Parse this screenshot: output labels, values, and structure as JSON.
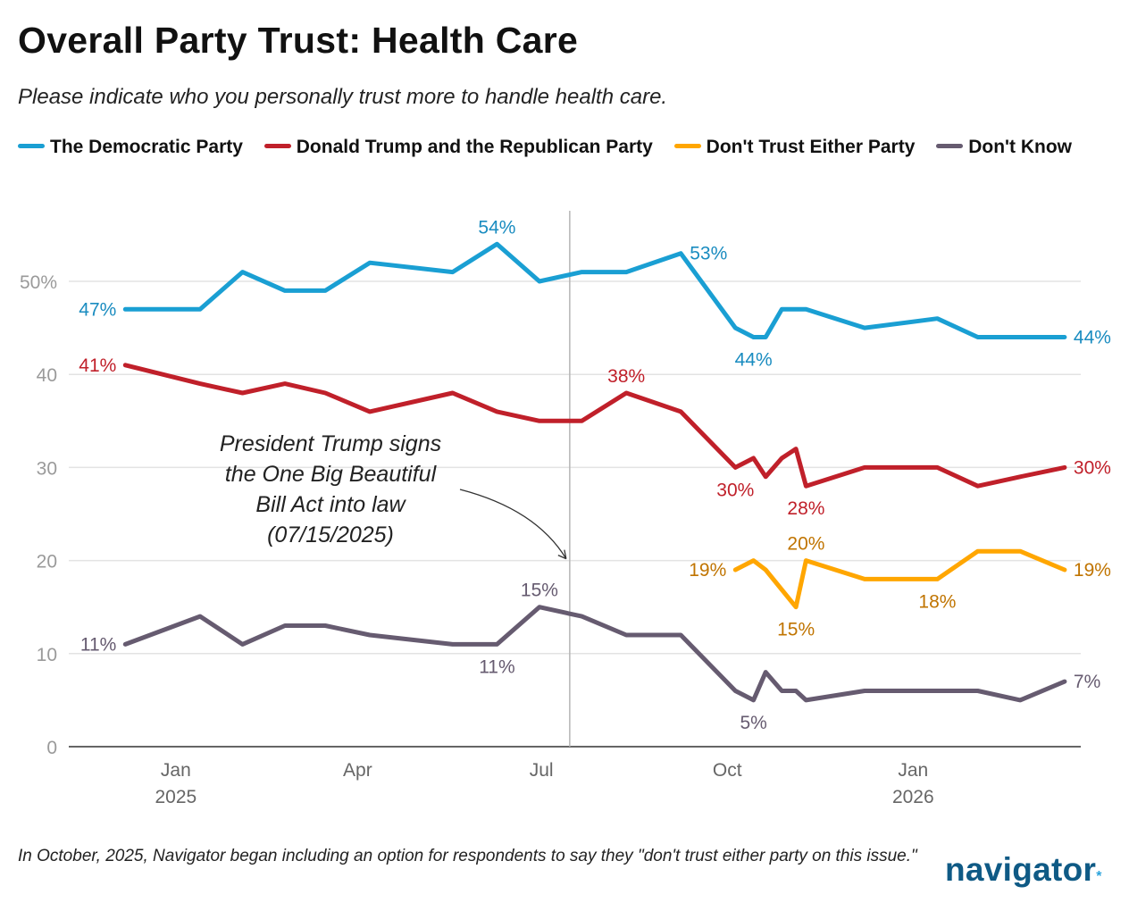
{
  "title": "Overall Party Trust: Health Care",
  "subtitle": "Please indicate who you personally trust more to handle health care.",
  "footnote": "In October, 2025, Navigator began including an option for respondents to say they \"don't trust either party on this issue.\"",
  "logo": "navigator",
  "chart_data": {
    "type": "line",
    "title": "Overall Party Trust: Health Care",
    "xlabel": "",
    "ylabel": "",
    "xlim": [
      "2024-11-09",
      "2026-03-25"
    ],
    "ylim": [
      0,
      56
    ],
    "grid": true,
    "legend_placement": "top",
    "y_ticks": [
      {
        "value": 0,
        "label": "0"
      },
      {
        "value": 10,
        "label": "10"
      },
      {
        "value": 20,
        "label": "20"
      },
      {
        "value": 30,
        "label": "30"
      },
      {
        "value": 40,
        "label": "40"
      },
      {
        "value": 50,
        "label": "50%"
      }
    ],
    "x_ticks": [
      {
        "date": "2025-01-01",
        "label": "Jan",
        "sublabel": "2025"
      },
      {
        "date": "2025-04-01",
        "label": "Apr",
        "sublabel": ""
      },
      {
        "date": "2025-07-01",
        "label": "Jul",
        "sublabel": ""
      },
      {
        "date": "2025-10-01",
        "label": "Oct",
        "sublabel": ""
      },
      {
        "date": "2026-01-01",
        "label": "Jan",
        "sublabel": "2026"
      }
    ],
    "annotation": {
      "date": "2025-07-15",
      "value": 20,
      "lines": [
        "President Trump signs",
        "the One Big Beautiful",
        "Bill Act into law",
        "(07/15/2025)"
      ]
    },
    "series": [
      {
        "name": "The Democratic Party",
        "color": "#1a9fd3",
        "label_color": "#1a8cc0",
        "points": [
          [
            "2024-12-07",
            47
          ],
          [
            "2025-01-13",
            47
          ],
          [
            "2025-02-03",
            51
          ],
          [
            "2025-02-24",
            49
          ],
          [
            "2025-03-16",
            49
          ],
          [
            "2025-04-07",
            52
          ],
          [
            "2025-05-18",
            51
          ],
          [
            "2025-06-09",
            54
          ],
          [
            "2025-06-30",
            50
          ],
          [
            "2025-07-21",
            51
          ],
          [
            "2025-08-12",
            51
          ],
          [
            "2025-09-08",
            53
          ],
          [
            "2025-10-05",
            45
          ],
          [
            "2025-10-14",
            44
          ],
          [
            "2025-10-20",
            44
          ],
          [
            "2025-10-28",
            47
          ],
          [
            "2025-11-04",
            47
          ],
          [
            "2025-11-09",
            47
          ],
          [
            "2025-12-08",
            45
          ],
          [
            "2026-01-13",
            46
          ],
          [
            "2026-02-02",
            44
          ],
          [
            "2026-02-23",
            44
          ],
          [
            "2026-03-17",
            44
          ]
        ],
        "labels": [
          {
            "date": "2024-12-07",
            "text": "47%",
            "placement": "left"
          },
          {
            "date": "2025-06-09",
            "text": "54%",
            "placement": "above"
          },
          {
            "date": "2025-09-08",
            "text": "53%",
            "placement": "right"
          },
          {
            "date": "2025-10-14",
            "text": "44%",
            "placement": "below"
          },
          {
            "date": "2026-03-17",
            "text": "44%",
            "placement": "right"
          }
        ]
      },
      {
        "name": "Donald Trump and the Republican Party",
        "color": "#c0202a",
        "label_color": "#c0202a",
        "points": [
          [
            "2024-12-07",
            41
          ],
          [
            "2025-01-13",
            39
          ],
          [
            "2025-02-03",
            38
          ],
          [
            "2025-02-24",
            39
          ],
          [
            "2025-03-16",
            38
          ],
          [
            "2025-04-07",
            36
          ],
          [
            "2025-05-18",
            38
          ],
          [
            "2025-06-09",
            36
          ],
          [
            "2025-06-30",
            35
          ],
          [
            "2025-07-21",
            35
          ],
          [
            "2025-08-12",
            38
          ],
          [
            "2025-09-08",
            36
          ],
          [
            "2025-10-05",
            30
          ],
          [
            "2025-10-14",
            31
          ],
          [
            "2025-10-20",
            29
          ],
          [
            "2025-10-28",
            31
          ],
          [
            "2025-11-04",
            32
          ],
          [
            "2025-11-09",
            28
          ],
          [
            "2025-12-08",
            30
          ],
          [
            "2026-01-13",
            30
          ],
          [
            "2026-02-02",
            28
          ],
          [
            "2026-02-23",
            29
          ],
          [
            "2026-03-17",
            30
          ]
        ],
        "labels": [
          {
            "date": "2024-12-07",
            "text": "41%",
            "placement": "left"
          },
          {
            "date": "2025-08-12",
            "text": "38%",
            "placement": "above"
          },
          {
            "date": "2025-10-05",
            "text": "30%",
            "placement": "below"
          },
          {
            "date": "2025-11-09",
            "text": "28%",
            "placement": "below"
          },
          {
            "date": "2026-03-17",
            "text": "30%",
            "placement": "right"
          }
        ]
      },
      {
        "name": "Don't Trust Either Party",
        "color": "#ffa600",
        "label_color": "#c07400",
        "points": [
          [
            "2025-10-05",
            19
          ],
          [
            "2025-10-14",
            20
          ],
          [
            "2025-10-20",
            19
          ],
          [
            "2025-11-04",
            15
          ],
          [
            "2025-11-09",
            20
          ],
          [
            "2025-12-08",
            18
          ],
          [
            "2026-01-13",
            18
          ],
          [
            "2026-02-02",
            21
          ],
          [
            "2026-02-23",
            21
          ],
          [
            "2026-03-17",
            19
          ]
        ],
        "labels": [
          {
            "date": "2025-10-05",
            "text": "19%",
            "placement": "left"
          },
          {
            "date": "2025-11-09",
            "text": "20%",
            "placement": "above"
          },
          {
            "date": "2025-11-04",
            "text": "15%",
            "placement": "below"
          },
          {
            "date": "2026-01-13",
            "text": "18%",
            "placement": "below"
          },
          {
            "date": "2026-03-17",
            "text": "19%",
            "placement": "right"
          }
        ]
      },
      {
        "name": "Don't Know",
        "color": "#665b70",
        "label_color": "#665b70",
        "points": [
          [
            "2024-12-07",
            11
          ],
          [
            "2025-01-13",
            14
          ],
          [
            "2025-02-03",
            11
          ],
          [
            "2025-02-24",
            13
          ],
          [
            "2025-03-16",
            13
          ],
          [
            "2025-04-07",
            12
          ],
          [
            "2025-05-18",
            11
          ],
          [
            "2025-06-09",
            11
          ],
          [
            "2025-06-30",
            15
          ],
          [
            "2025-07-21",
            14
          ],
          [
            "2025-08-12",
            12
          ],
          [
            "2025-09-08",
            12
          ],
          [
            "2025-10-05",
            6
          ],
          [
            "2025-10-14",
            5
          ],
          [
            "2025-10-20",
            8
          ],
          [
            "2025-10-28",
            6
          ],
          [
            "2025-11-04",
            6
          ],
          [
            "2025-11-09",
            5
          ],
          [
            "2025-12-08",
            6
          ],
          [
            "2026-01-13",
            6
          ],
          [
            "2026-02-02",
            6
          ],
          [
            "2026-02-23",
            5
          ],
          [
            "2026-03-17",
            7
          ]
        ],
        "labels": [
          {
            "date": "2024-12-07",
            "text": "11%",
            "placement": "left"
          },
          {
            "date": "2025-06-09",
            "text": "11%",
            "placement": "below"
          },
          {
            "date": "2025-06-30",
            "text": "15%",
            "placement": "above"
          },
          {
            "date": "2025-10-14",
            "text": "5%",
            "placement": "below"
          },
          {
            "date": "2026-03-17",
            "text": "7%",
            "placement": "right"
          }
        ]
      }
    ]
  }
}
